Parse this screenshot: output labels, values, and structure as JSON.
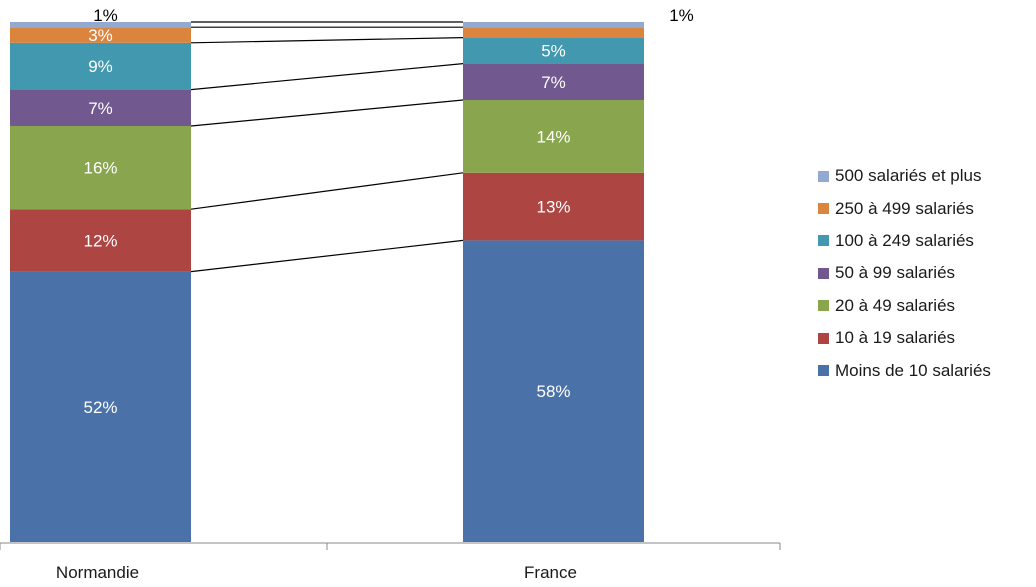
{
  "chart_data": {
    "type": "bar",
    "stacked": true,
    "normalized_percent": true,
    "categories": [
      "Normandie",
      "France"
    ],
    "series": [
      {
        "name": "Moins de 10 salariés",
        "color": "#4a72a8",
        "values": [
          52,
          58
        ],
        "labels": [
          "52%",
          "58%"
        ]
      },
      {
        "name": "10 à 19 salariés",
        "color": "#ad4543",
        "values": [
          12,
          13
        ],
        "labels": [
          "12%",
          "13%"
        ]
      },
      {
        "name": "20 à 49 salariés",
        "color": "#89a54e",
        "values": [
          16,
          14
        ],
        "labels": [
          "16%",
          "14%"
        ]
      },
      {
        "name": "50 à 99 salariés",
        "color": "#71588f",
        "values": [
          7,
          7
        ],
        "labels": [
          "7%",
          "7%"
        ]
      },
      {
        "name": "100 à 249 salariés",
        "color": "#4198af",
        "values": [
          9,
          5
        ],
        "labels": [
          "9%",
          "5%"
        ]
      },
      {
        "name": "250 à 499 salariés",
        "color": "#db843d",
        "values": [
          3,
          2
        ],
        "labels": [
          "3%",
          "2%"
        ]
      },
      {
        "name": "500 salariés et plus",
        "color": "#93a9cf",
        "values": [
          1,
          1
        ],
        "labels": [
          "1%",
          "1%"
        ]
      }
    ],
    "series_lines": true,
    "legend_position": "right",
    "grid": false,
    "ylim": [
      0,
      100
    ]
  }
}
